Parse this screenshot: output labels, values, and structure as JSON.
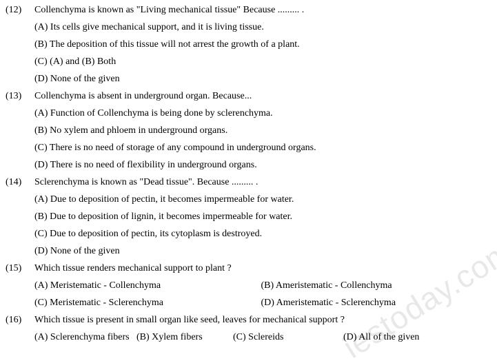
{
  "questions": [
    {
      "num": "(12)",
      "stem": "Collenchyma is known as \"Living mechanical tissue\" Because ......... .",
      "layout": "full",
      "options": [
        "(A) Its cells give mechanical support, and it is living tissue.",
        "(B) The deposition of this tissue will not arrest the growth of a plant.",
        "(C) (A) and (B) Both",
        "(D) None of the given"
      ]
    },
    {
      "num": "(13)",
      "stem": "Collenchyma is absent in underground organ. Because...",
      "layout": "full",
      "options": [
        "(A) Function of Collenchyma is being done by sclerenchyma.",
        "(B) No xylem and phloem in underground organs.",
        "(C) There is no need of storage of any compound in underground organs.",
        "(D) There is no need of flexibility in underground organs."
      ]
    },
    {
      "num": "(14)",
      "stem": "Sclerenchyma is known as \"Dead tissue\". Because ......... .",
      "layout": "full",
      "options": [
        "(A) Due to deposition of pectin, it becomes impermeable for water.",
        "(B) Due to deposition of lignin, it becomes impermeable for water.",
        "(C) Due to deposition of pectin, its cytoplasm is destroyed.",
        "(D) None of the given"
      ]
    },
    {
      "num": "(15)",
      "stem": "Which tissue renders mechanical support to plant ?",
      "layout": "2col",
      "options2": [
        [
          "(A) Meristematic - Collenchyma",
          "(B) Ameristematic - Collenchyma"
        ],
        [
          "(C) Meristematic - Sclerenchyma",
          "(D) Ameristematic - Sclerenchyma"
        ]
      ]
    },
    {
      "num": "(16)",
      "stem": "Which tissue is present in small organ like seed, leaves for mechanical support ?",
      "layout": "4col",
      "options4": [
        "(A) Sclerenchyma fibers",
        "(B) Xylem fibers",
        "(C) Sclereids",
        "(D) All of the given"
      ]
    }
  ],
  "watermark": "iestoday.com"
}
